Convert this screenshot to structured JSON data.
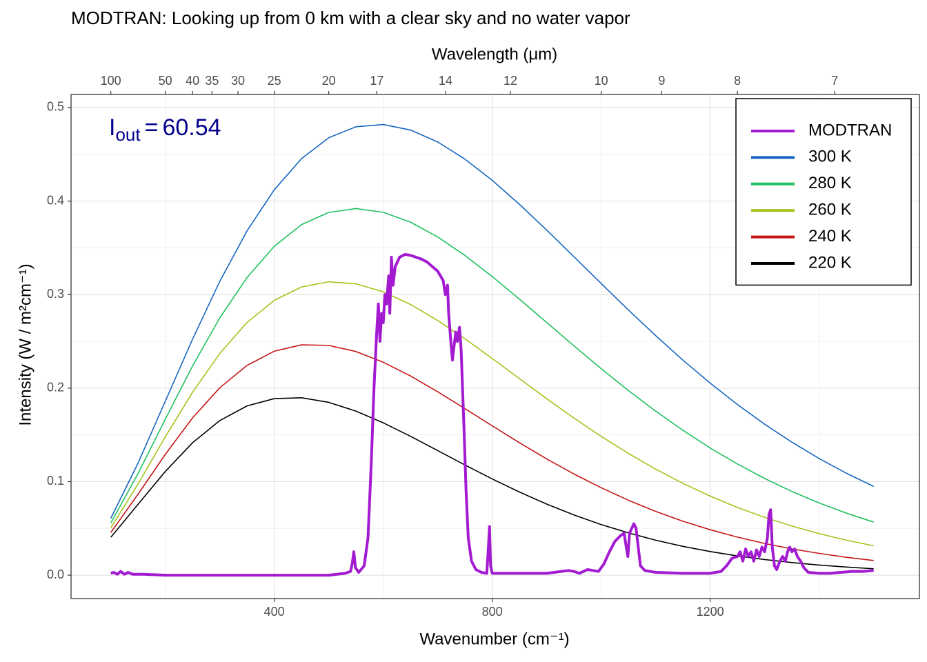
{
  "chart_data": {
    "type": "line",
    "title": "MODTRAN: Looking up from 0 km with a clear sky and no water vapor",
    "x_label": "Wavenumber (cm⁻¹)",
    "x2_label": "Wavelength (μm)",
    "y_label": "Intensity (W / m²cm⁻¹)",
    "annotation": {
      "symbol": "I",
      "subscript": "out",
      "relation": "=",
      "value": 60.54,
      "color": "#00008b"
    },
    "xlim": [
      27,
      1584
    ],
    "ylim": [
      -0.025,
      0.514
    ],
    "xticks": [
      400,
      800,
      1200
    ],
    "x2ticks": [
      100,
      50,
      40,
      35,
      30,
      25,
      20,
      17,
      14,
      12,
      10,
      9,
      8,
      7
    ],
    "yticks": [
      {
        "value": 0,
        "label": "0.0"
      },
      0.1,
      0.2,
      0.3,
      0.4,
      0.5
    ],
    "grid": true,
    "legend": "top-right",
    "series": [
      {
        "name": "MODTRAN",
        "color": "#a31ad1",
        "x": [
          100,
          105,
          112,
          118,
          125,
          132,
          140,
          160,
          200,
          300,
          400,
          500,
          530,
          540,
          543,
          546,
          549,
          555,
          565,
          572,
          578,
          583,
          588,
          591,
          594,
          597,
          600,
          603,
          606,
          610,
          612,
          615,
          618,
          622,
          630,
          640,
          650,
          660,
          670,
          680,
          690,
          700,
          710,
          714,
          718,
          720,
          724,
          727,
          730,
          733,
          736,
          740,
          743,
          748,
          752,
          756,
          762,
          770,
          780,
          790,
          793,
          795,
          797,
          800,
          850,
          900,
          940,
          950,
          960,
          975,
          985,
          995,
          1005,
          1015,
          1025,
          1035,
          1042,
          1046,
          1049,
          1052,
          1056,
          1060,
          1064,
          1068,
          1072,
          1080,
          1100,
          1150,
          1200,
          1220,
          1230,
          1240,
          1250,
          1255,
          1260,
          1265,
          1270,
          1275,
          1280,
          1285,
          1290,
          1295,
          1300,
          1305,
          1308,
          1311,
          1314,
          1318,
          1322,
          1328,
          1333,
          1338,
          1342,
          1346,
          1350,
          1355,
          1360,
          1366,
          1372,
          1380,
          1400,
          1420,
          1440,
          1460,
          1480,
          1500
        ],
        "values": [
          0.002,
          0.003,
          0.001,
          0.004,
          0.001,
          0.003,
          0.001,
          0.001,
          0,
          0,
          0,
          0,
          0.002,
          0.004,
          0.012,
          0.025,
          0.008,
          0.003,
          0.01,
          0.04,
          0.12,
          0.2,
          0.26,
          0.29,
          0.25,
          0.28,
          0.27,
          0.3,
          0.29,
          0.32,
          0.28,
          0.34,
          0.31,
          0.33,
          0.34,
          0.343,
          0.342,
          0.34,
          0.338,
          0.335,
          0.33,
          0.325,
          0.315,
          0.3,
          0.31,
          0.28,
          0.25,
          0.23,
          0.245,
          0.26,
          0.25,
          0.265,
          0.24,
          0.16,
          0.09,
          0.04,
          0.015,
          0.006,
          0.003,
          0.002,
          0.03,
          0.052,
          0.01,
          0.002,
          0.002,
          0.002,
          0.005,
          0.004,
          0.002,
          0.006,
          0.005,
          0.004,
          0.012,
          0.025,
          0.036,
          0.042,
          0.045,
          0.03,
          0.02,
          0.045,
          0.05,
          0.055,
          0.05,
          0.03,
          0.01,
          0.005,
          0.003,
          0.002,
          0.002,
          0.004,
          0.01,
          0.018,
          0.02,
          0.025,
          0.015,
          0.028,
          0.02,
          0.025,
          0.015,
          0.027,
          0.02,
          0.03,
          0.025,
          0.04,
          0.065,
          0.07,
          0.03,
          0.01,
          0.006,
          0.015,
          0.02,
          0.015,
          0.025,
          0.03,
          0.025,
          0.028,
          0.02,
          0.015,
          0.008,
          0.003,
          0.002,
          0.002,
          0.003,
          0.004,
          0.004,
          0.005
        ]
      },
      {
        "name": "300 K",
        "color": "#1565c0",
        "x": [
          100,
          150,
          200,
          250,
          300,
          350,
          400,
          450,
          500,
          550,
          600,
          650,
          700,
          750,
          800,
          850,
          900,
          950,
          1000,
          1050,
          1100,
          1150,
          1200,
          1250,
          1300,
          1350,
          1400,
          1450,
          1500
        ],
        "values": [
          0.0608,
          0.1199,
          0.186,
          0.2523,
          0.3142,
          0.3681,
          0.4121,
          0.4454,
          0.4677,
          0.4795,
          0.4819,
          0.476,
          0.4632,
          0.4448,
          0.4222,
          0.3965,
          0.369,
          0.3405,
          0.3118,
          0.2835,
          0.2561,
          0.2299,
          0.2054,
          0.1825,
          0.1614,
          0.1422,
          0.1247,
          0.109,
          0.0949
        ]
      },
      {
        "name": "280 K",
        "color": "#1fc05f",
        "x": [
          100,
          150,
          200,
          250,
          300,
          350,
          400,
          450,
          500,
          550,
          600,
          650,
          700,
          750,
          800,
          850,
          900,
          950,
          1000,
          1050,
          1100,
          1150,
          1200,
          1250,
          1300,
          1350,
          1400,
          1450,
          1500
        ],
        "values": [
          0.0557,
          0.1087,
          0.1668,
          0.2237,
          0.2751,
          0.3183,
          0.3516,
          0.3748,
          0.3879,
          0.392,
          0.388,
          0.3775,
          0.3616,
          0.3418,
          0.3193,
          0.2951,
          0.2702,
          0.2452,
          0.2208,
          0.1974,
          0.1754,
          0.1549,
          0.136,
          0.1189,
          0.1034,
          0.0895,
          0.0772,
          0.0663,
          0.0568
        ]
      },
      {
        "name": "260 K",
        "color": "#a6c21a",
        "x": [
          100,
          150,
          200,
          250,
          300,
          350,
          400,
          450,
          500,
          550,
          600,
          650,
          700,
          750,
          800,
          850,
          900,
          950,
          1000,
          1050,
          1100,
          1150,
          1200,
          1250,
          1300,
          1350,
          1400,
          1450,
          1500
        ],
        "values": [
          0.0506,
          0.0976,
          0.1479,
          0.1956,
          0.2371,
          0.2702,
          0.2939,
          0.3082,
          0.3137,
          0.3115,
          0.303,
          0.2895,
          0.2723,
          0.2527,
          0.2317,
          0.2101,
          0.1887,
          0.168,
          0.1484,
          0.1302,
          0.1134,
          0.0982,
          0.0846,
          0.0724,
          0.0618,
          0.0525,
          0.0444,
          0.0374,
          0.0314
        ]
      },
      {
        "name": "240 K",
        "color": "#c41414",
        "x": [
          100,
          150,
          200,
          250,
          300,
          350,
          400,
          450,
          500,
          550,
          600,
          650,
          700,
          750,
          800,
          850,
          900,
          950,
          1000,
          1050,
          1100,
          1150,
          1200,
          1250,
          1300,
          1350,
          1400,
          1450,
          1500
        ],
        "values": [
          0.0456,
          0.0866,
          0.1292,
          0.1682,
          0.2004,
          0.2243,
          0.2395,
          0.2463,
          0.2457,
          0.2391,
          0.2277,
          0.213,
          0.1961,
          0.178,
          0.1597,
          0.1416,
          0.1243,
          0.1082,
          0.0935,
          0.0801,
          0.0682,
          0.0577,
          0.0486,
          0.0407,
          0.0339,
          0.0281,
          0.0233,
          0.0191,
          0.0157
        ]
      },
      {
        "name": "220 K",
        "color": "#000000",
        "x": [
          100,
          150,
          200,
          250,
          300,
          350,
          400,
          450,
          500,
          550,
          600,
          650,
          700,
          750,
          800,
          850,
          900,
          950,
          1000,
          1050,
          1100,
          1150,
          1200,
          1250,
          1300,
          1350,
          1400,
          1450,
          1500
        ],
        "values": [
          0.0405,
          0.0758,
          0.1109,
          0.1416,
          0.1653,
          0.181,
          0.1888,
          0.1897,
          0.1848,
          0.1754,
          0.1629,
          0.1485,
          0.1332,
          0.1178,
          0.1029,
          0.0889,
          0.076,
          0.0644,
          0.0541,
          0.0452,
          0.0374,
          0.0308,
          0.0253,
          0.0206,
          0.0167,
          0.0135,
          0.0108,
          0.0087,
          0.0069
        ]
      }
    ]
  }
}
